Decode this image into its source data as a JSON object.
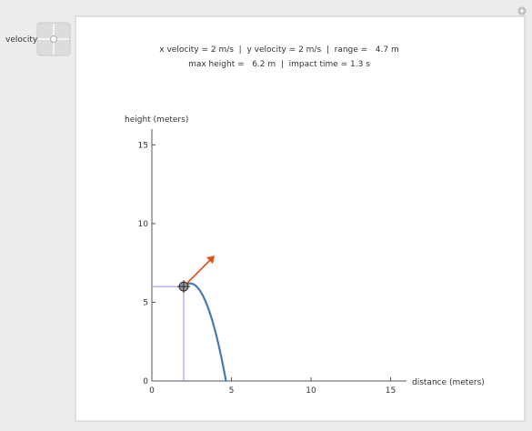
{
  "controls": {
    "velocity_label": "velocity"
  },
  "readout": {
    "line1": "x velocity = 2 m/s  |  y velocity = 2 m/s  |  range =   4.7 m",
    "line2": "max height =   6.2 m  |  impact time = 1.3 s"
  },
  "chart_data": {
    "type": "line",
    "x_label": "distance (meters)",
    "y_label": "height (meters)",
    "xlim": [
      0,
      16
    ],
    "ylim": [
      0,
      16
    ],
    "xticks": [
      0,
      5,
      10,
      15
    ],
    "yticks": [
      0,
      5,
      10,
      15
    ],
    "series": [
      {
        "color": "#4a78b4",
        "x": [
          2,
          2.2,
          2.4,
          2.6,
          2.8,
          3.0,
          3.2,
          3.4,
          3.6,
          3.8,
          4.0,
          4.2,
          4.4,
          4.6,
          4.66
        ],
        "values": [
          6,
          6.151,
          6.204,
          6.159,
          6.016,
          5.775,
          5.436,
          4.999,
          4.464,
          3.831,
          3.1,
          2.271,
          1.344,
          0.319,
          0
        ]
      }
    ]
  }
}
